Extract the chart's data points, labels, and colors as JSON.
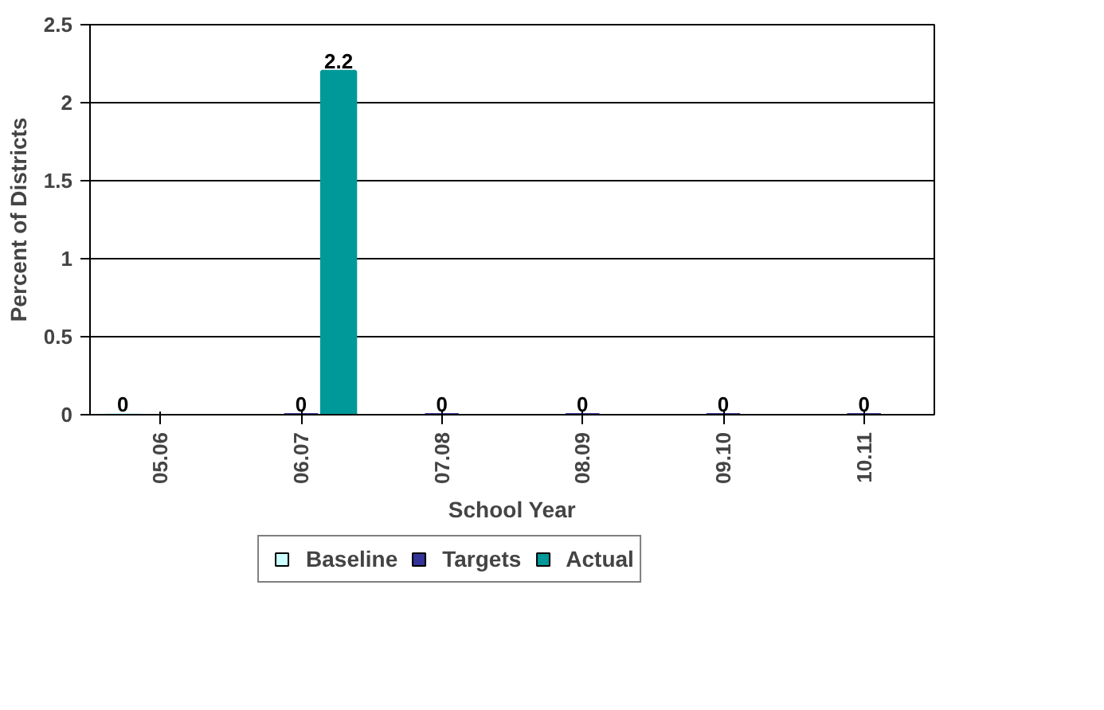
{
  "chart_data": {
    "type": "bar",
    "xlabel": "School Year",
    "ylabel": "Percent of Districts",
    "categories": [
      "05.06",
      "06.07",
      "07.08",
      "08.09",
      "09.10",
      "10.11"
    ],
    "series": [
      {
        "name": "Baseline",
        "color": "#ccffff",
        "values": [
          0,
          null,
          null,
          null,
          null,
          null
        ]
      },
      {
        "name": "Targets",
        "color": "#333399",
        "values": [
          null,
          0,
          0,
          0,
          0,
          0
        ]
      },
      {
        "name": "Actual",
        "color": "#009999",
        "values": [
          null,
          2.2,
          null,
          null,
          null,
          null
        ]
      }
    ],
    "ylim": [
      0,
      2.5
    ],
    "yticks": [
      0,
      0.5,
      1,
      1.5,
      2,
      2.5
    ],
    "grid": "y",
    "legend": "bottom",
    "data_labels": true
  }
}
